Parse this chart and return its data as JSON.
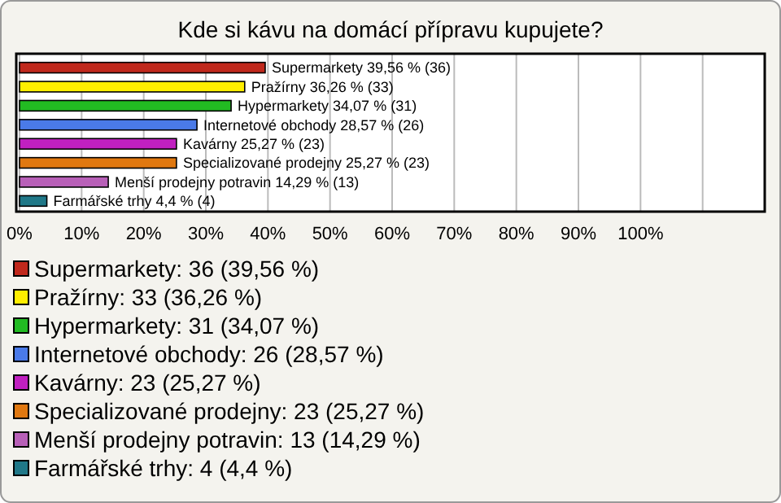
{
  "chart_data": {
    "type": "bar",
    "orientation": "horizontal",
    "stacked": true,
    "title": "Kde si kávu na domácí přípravu kupujete?",
    "categories": [
      null,
      null,
      null,
      null,
      null,
      null,
      null,
      null
    ],
    "series": [
      {
        "name": "Supermarkety: 36 (39,56 %)",
        "color": "#c0281c",
        "values": [
          39.56,
          null,
          null,
          null,
          null,
          null,
          null,
          null
        ],
        "value_labels": [
          "Supermarkety 39,56 % (36)",
          null,
          null,
          null,
          null,
          null,
          null,
          null
        ]
      },
      {
        "name": "Pražírny: 33 (36,26 %)",
        "color": "#ffee00",
        "values": [
          null,
          36.26,
          null,
          null,
          null,
          null,
          null,
          null
        ],
        "value_labels": [
          null,
          "Pražírny 36,26 % (33)",
          null,
          null,
          null,
          null,
          null,
          null
        ]
      },
      {
        "name": "Hypermarkety: 31 (34,07 %)",
        "color": "#22bb22",
        "values": [
          null,
          null,
          34.07,
          null,
          null,
          null,
          null,
          null
        ],
        "value_labels": [
          null,
          null,
          "Hypermarkety 34,07 % (31)",
          null,
          null,
          null,
          null,
          null
        ]
      },
      {
        "name": "Internetové obchody: 26 (28,57 %)",
        "color": "#4a7ae8",
        "values": [
          null,
          null,
          null,
          28.57,
          null,
          null,
          null,
          null
        ],
        "value_labels": [
          null,
          null,
          null,
          "Internetové obchody 28,57 % (26)",
          null,
          null,
          null,
          null
        ]
      },
      {
        "name": "Kavárny: 23 (25,27 %)",
        "color": "#c020c0",
        "values": [
          null,
          null,
          null,
          null,
          25.27,
          null,
          null,
          null
        ],
        "value_labels": [
          null,
          null,
          null,
          null,
          "Kavárny 25,27 % (23)",
          null,
          null,
          null
        ]
      },
      {
        "name": "Specializované prodejny: 23 (25,27 %)",
        "color": "#e07810",
        "values": [
          null,
          null,
          null,
          null,
          null,
          25.27,
          null,
          null
        ],
        "value_labels": [
          null,
          null,
          null,
          null,
          null,
          "Specializované prodejny 25,27 % (23)",
          null,
          null
        ]
      },
      {
        "name": "Menší prodejny potravin: 13 (14,29 %)",
        "color": "#b860b8",
        "values": [
          null,
          null,
          null,
          null,
          null,
          null,
          14.29,
          null
        ],
        "value_labels": [
          null,
          null,
          null,
          null,
          null,
          null,
          "Menší prodejny potravin 14,29 % (13)",
          null
        ]
      },
      {
        "name": "Farmářské trhy: 4 (4,4 %)",
        "color": "#207888",
        "values": [
          null,
          null,
          null,
          null,
          null,
          null,
          null,
          4.4
        ],
        "value_labels": [
          null,
          null,
          null,
          null,
          null,
          null,
          null,
          "Farmářské trhy 4,4 % (4)"
        ]
      }
    ],
    "xlim": [
      0,
      120
    ],
    "xticks": [
      {
        "value": 0,
        "label": "0%"
      },
      {
        "value": 10,
        "label": "10%"
      },
      {
        "value": 20,
        "label": "20%"
      },
      {
        "value": 30,
        "label": "30%"
      },
      {
        "value": 40,
        "label": "40%"
      },
      {
        "value": 50,
        "label": "50%"
      },
      {
        "value": 60,
        "label": "60%"
      },
      {
        "value": 70,
        "label": "70%"
      },
      {
        "value": 80,
        "label": "80%"
      },
      {
        "value": 90,
        "label": "90%"
      },
      {
        "value": 100,
        "label": "100%"
      },
      {
        "value": 110,
        "label": null
      },
      {
        "value": 120,
        "label": null
      }
    ],
    "grid": "x",
    "tick_labels": "x",
    "legend": "bottom"
  }
}
